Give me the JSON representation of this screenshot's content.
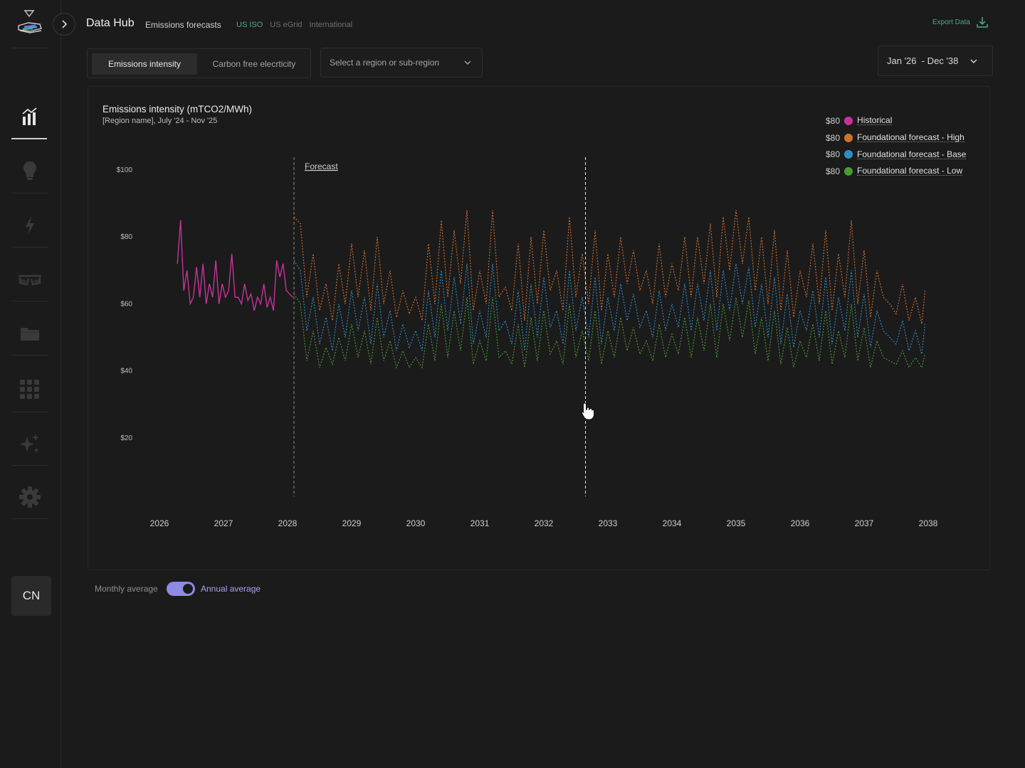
{
  "header": {
    "title": "Data Hub",
    "subtitle": "Emissions forecasts",
    "tabs": [
      {
        "label": "US ISO",
        "active": true
      },
      {
        "label": "US eGrid",
        "active": false
      },
      {
        "label": "International",
        "active": false
      }
    ],
    "export_label": "Export Data"
  },
  "sidebar": {
    "items": [
      {
        "icon": "bar-chart-icon",
        "active": true
      },
      {
        "icon": "lightbulb-icon",
        "active": false
      },
      {
        "icon": "lightning-icon",
        "active": false
      },
      {
        "icon": "glasses-icon",
        "active": false
      },
      {
        "icon": "folder-icon",
        "active": false
      },
      {
        "icon": "grid-icon",
        "active": false
      },
      {
        "icon": "sparkle-icon",
        "active": false
      },
      {
        "icon": "gear-icon",
        "active": false
      }
    ],
    "avatar_initials": "CN"
  },
  "controls": {
    "metric_tabs": [
      {
        "label": "Emissions intensity",
        "active": true
      },
      {
        "label": "Carbon free elecrticity",
        "active": false
      }
    ],
    "region_placeholder": "Select a region or sub-region",
    "date_range": "Jan '26  - Dec '38"
  },
  "toggle": {
    "left_label": "Monthly average",
    "right_label": "Annual average",
    "state": "annual"
  },
  "colors": {
    "historical": "#c8319b",
    "high": "#d0702e",
    "base": "#2f8fc4",
    "low": "#4a9a34",
    "accent": "#4aa88a",
    "toggle": "#8e8ae6"
  },
  "chart_data": {
    "type": "line",
    "title": "Emissions intensity (mTCO2/MWh)",
    "subtitle": "[Region name], July '24 - Nov '25",
    "x_ticks": [
      "2026",
      "2027",
      "2028",
      "2029",
      "2030",
      "2031",
      "2032",
      "2033",
      "2034",
      "2035",
      "2036",
      "2037",
      "2038"
    ],
    "y_ticks": [
      "$100",
      "$80",
      "$60",
      "$40",
      "$20"
    ],
    "ylim": [
      0,
      100
    ],
    "xlim": [
      2026,
      2038
    ],
    "forecast_label": "Forecast",
    "forecast_start": 2028.1,
    "hover_x": 2032.65,
    "legend": [
      {
        "value": "$80",
        "name": "Historical",
        "color": "#c8319b"
      },
      {
        "value": "$80",
        "name": "Foundational forecast - High",
        "color": "#d0702e"
      },
      {
        "value": "$80",
        "name": "Foundational forecast - Base",
        "color": "#2f8fc4"
      },
      {
        "value": "$80",
        "name": "Foundational forecast - Low",
        "color": "#4a9a34"
      }
    ],
    "series": [
      {
        "name": "Historical",
        "x": [
          2026.28,
          2026.33,
          2026.38,
          2026.43,
          2026.48,
          2026.53,
          2026.58,
          2026.63,
          2026.68,
          2026.73,
          2026.78,
          2026.83,
          2026.88,
          2026.93,
          2026.98,
          2027.03,
          2027.08,
          2027.13,
          2027.18,
          2027.23,
          2027.28,
          2027.33,
          2027.38,
          2027.43,
          2027.48,
          2027.53,
          2027.58,
          2027.63,
          2027.68,
          2027.73,
          2027.78,
          2027.83,
          2027.88,
          2027.93,
          2027.98,
          2028.03,
          2028.08
        ],
        "values": [
          72,
          85,
          64,
          70,
          60,
          62,
          71,
          62,
          72,
          60,
          66,
          62,
          73,
          60,
          66,
          62,
          64,
          75,
          62,
          62,
          60,
          66,
          61,
          63,
          58,
          62,
          60,
          66,
          59,
          62,
          58,
          73,
          68,
          72,
          64,
          63,
          62
        ]
      },
      {
        "name": "Foundational forecast - High",
        "x": [
          2028.1,
          2028.2,
          2028.3,
          2028.4,
          2028.5,
          2028.6,
          2028.7,
          2028.8,
          2028.9,
          2029.0,
          2029.1,
          2029.2,
          2029.3,
          2029.4,
          2029.5,
          2029.6,
          2029.7,
          2029.8,
          2029.9,
          2030.0,
          2030.1,
          2030.2,
          2030.3,
          2030.4,
          2030.5,
          2030.6,
          2030.7,
          2030.8,
          2030.9,
          2031.0,
          2031.1,
          2031.2,
          2031.3,
          2031.4,
          2031.5,
          2031.6,
          2031.7,
          2031.8,
          2031.9,
          2032.0,
          2032.1,
          2032.2,
          2032.3,
          2032.4,
          2032.5,
          2032.6,
          2032.7,
          2032.8,
          2032.9,
          2033.0,
          2033.1,
          2033.2,
          2033.3,
          2033.4,
          2033.5,
          2033.6,
          2033.7,
          2033.8,
          2033.9,
          2034.0,
          2034.1,
          2034.2,
          2034.3,
          2034.4,
          2034.5,
          2034.6,
          2034.7,
          2034.8,
          2034.9,
          2035.0,
          2035.1,
          2035.2,
          2035.3,
          2035.4,
          2035.5,
          2035.6,
          2035.7,
          2035.8,
          2035.9,
          2036.0,
          2036.1,
          2036.2,
          2036.3,
          2036.4,
          2036.5,
          2036.6,
          2036.7,
          2036.8,
          2036.9,
          2037.0,
          2037.1,
          2037.2,
          2037.3,
          2037.4,
          2037.5,
          2037.6,
          2037.7,
          2037.8,
          2037.9,
          2037.95
        ],
        "values": [
          86,
          84,
          62,
          75,
          58,
          66,
          55,
          72,
          60,
          78,
          62,
          76,
          58,
          80,
          60,
          70,
          56,
          64,
          57,
          62,
          55,
          78,
          60,
          85,
          62,
          82,
          66,
          88,
          58,
          70,
          60,
          88,
          62,
          65,
          58,
          78,
          55,
          80,
          60,
          82,
          64,
          70,
          58,
          86,
          62,
          75,
          60,
          82,
          58,
          75,
          62,
          80,
          66,
          76,
          64,
          70,
          60,
          78,
          62,
          72,
          64,
          80,
          62,
          80,
          66,
          84,
          62,
          86,
          70,
          88,
          72,
          86,
          64,
          80,
          60,
          82,
          58,
          76,
          56,
          70,
          62,
          78,
          60,
          82,
          58,
          75,
          62,
          85,
          60,
          76,
          56,
          70,
          62,
          60,
          57,
          66,
          55,
          62,
          54,
          64
        ]
      },
      {
        "name": "Foundational forecast - Base",
        "x": [
          2028.1,
          2028.2,
          2028.3,
          2028.4,
          2028.5,
          2028.6,
          2028.7,
          2028.8,
          2028.9,
          2029.0,
          2029.1,
          2029.2,
          2029.3,
          2029.4,
          2029.5,
          2029.6,
          2029.7,
          2029.8,
          2029.9,
          2030.0,
          2030.1,
          2030.2,
          2030.3,
          2030.4,
          2030.5,
          2030.6,
          2030.7,
          2030.8,
          2030.9,
          2031.0,
          2031.1,
          2031.2,
          2031.3,
          2031.4,
          2031.5,
          2031.6,
          2031.7,
          2031.8,
          2031.9,
          2032.0,
          2032.1,
          2032.2,
          2032.3,
          2032.4,
          2032.5,
          2032.6,
          2032.7,
          2032.8,
          2032.9,
          2033.0,
          2033.1,
          2033.2,
          2033.3,
          2033.4,
          2033.5,
          2033.6,
          2033.7,
          2033.8,
          2033.9,
          2034.0,
          2034.1,
          2034.2,
          2034.3,
          2034.4,
          2034.5,
          2034.6,
          2034.7,
          2034.8,
          2034.9,
          2035.0,
          2035.1,
          2035.2,
          2035.3,
          2035.4,
          2035.5,
          2035.6,
          2035.7,
          2035.8,
          2035.9,
          2036.0,
          2036.1,
          2036.2,
          2036.3,
          2036.4,
          2036.5,
          2036.6,
          2036.7,
          2036.8,
          2036.9,
          2037.0,
          2037.1,
          2037.2,
          2037.3,
          2037.4,
          2037.5,
          2037.6,
          2037.7,
          2037.8,
          2037.9,
          2037.95
        ],
        "values": [
          73,
          70,
          52,
          62,
          48,
          56,
          46,
          60,
          50,
          64,
          52,
          62,
          48,
          66,
          50,
          58,
          46,
          54,
          47,
          52,
          46,
          64,
          50,
          70,
          52,
          68,
          54,
          72,
          48,
          58,
          50,
          72,
          52,
          55,
          48,
          64,
          46,
          66,
          50,
          68,
          53,
          58,
          48,
          70,
          52,
          62,
          50,
          68,
          48,
          62,
          52,
          66,
          55,
          63,
          53,
          58,
          50,
          64,
          52,
          60,
          53,
          66,
          52,
          66,
          55,
          70,
          52,
          70,
          58,
          72,
          60,
          71,
          53,
          66,
          50,
          68,
          48,
          63,
          47,
          58,
          52,
          64,
          50,
          68,
          48,
          62,
          52,
          70,
          50,
          63,
          47,
          58,
          52,
          50,
          48,
          55,
          46,
          52,
          45,
          54
        ]
      },
      {
        "name": "Foundational forecast - Low",
        "x": [
          2028.1,
          2028.2,
          2028.3,
          2028.4,
          2028.5,
          2028.6,
          2028.7,
          2028.8,
          2028.9,
          2029.0,
          2029.1,
          2029.2,
          2029.3,
          2029.4,
          2029.5,
          2029.6,
          2029.7,
          2029.8,
          2029.9,
          2030.0,
          2030.1,
          2030.2,
          2030.3,
          2030.4,
          2030.5,
          2030.6,
          2030.7,
          2030.8,
          2030.9,
          2031.0,
          2031.1,
          2031.2,
          2031.3,
          2031.4,
          2031.5,
          2031.6,
          2031.7,
          2031.8,
          2031.9,
          2032.0,
          2032.1,
          2032.2,
          2032.3,
          2032.4,
          2032.5,
          2032.6,
          2032.7,
          2032.8,
          2032.9,
          2033.0,
          2033.1,
          2033.2,
          2033.3,
          2033.4,
          2033.5,
          2033.6,
          2033.7,
          2033.8,
          2033.9,
          2034.0,
          2034.1,
          2034.2,
          2034.3,
          2034.4,
          2034.5,
          2034.6,
          2034.7,
          2034.8,
          2034.9,
          2035.0,
          2035.1,
          2035.2,
          2035.3,
          2035.4,
          2035.5,
          2035.6,
          2035.7,
          2035.8,
          2035.9,
          2036.0,
          2036.1,
          2036.2,
          2036.3,
          2036.4,
          2036.5,
          2036.6,
          2036.7,
          2036.8,
          2036.9,
          2037.0,
          2037.1,
          2037.2,
          2037.3,
          2037.4,
          2037.5,
          2037.6,
          2037.7,
          2037.8,
          2037.9,
          2037.95
        ],
        "values": [
          63,
          60,
          43,
          52,
          41,
          47,
          42,
          50,
          43,
          54,
          44,
          52,
          42,
          56,
          43,
          49,
          41,
          46,
          41,
          44,
          41,
          54,
          43,
          60,
          44,
          58,
          46,
          62,
          42,
          49,
          43,
          62,
          44,
          46,
          42,
          54,
          41,
          56,
          43,
          58,
          45,
          49,
          42,
          60,
          44,
          52,
          43,
          58,
          42,
          52,
          44,
          56,
          46,
          53,
          45,
          49,
          43,
          54,
          44,
          51,
          45,
          56,
          44,
          56,
          46,
          60,
          44,
          60,
          49,
          62,
          50,
          61,
          45,
          56,
          43,
          58,
          42,
          53,
          41,
          49,
          44,
          54,
          43,
          58,
          42,
          52,
          44,
          60,
          43,
          53,
          41,
          49,
          44,
          43,
          42,
          46,
          41,
          44,
          41,
          45
        ]
      }
    ]
  }
}
